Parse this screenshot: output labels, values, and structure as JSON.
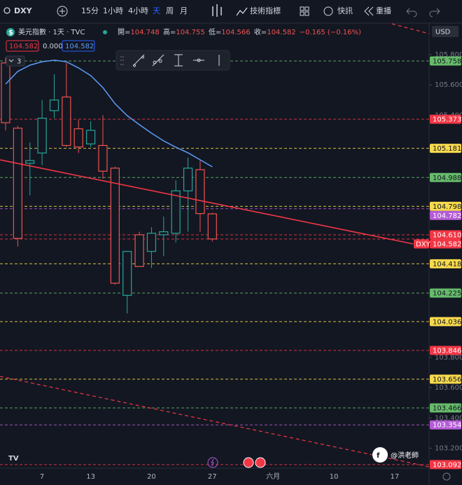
{
  "toolbar": {
    "symbol": "DXY",
    "intervals": [
      "15分",
      "1小時",
      "4小時",
      "天",
      "周",
      "月"
    ],
    "indicators": "技術指標",
    "alerts": "快訊",
    "replay": "重播"
  },
  "legend": {
    "title": "美元指數 · 1天 · TVC",
    "ohlc_labels": [
      "開=",
      "高=",
      "低=",
      "收="
    ],
    "change": "−0.165 (−0.16%)",
    "price_boxes": [
      "104.582",
      "0.000",
      "104.582"
    ],
    "collapse": "3"
  },
  "currency": "USD",
  "watermark": "@洪老師",
  "chart_data": {
    "type": "candlestick",
    "symbol_tag": "DXY",
    "categories": [
      null,
      null,
      null,
      "7",
      null,
      null,
      null,
      "13",
      null,
      null,
      null,
      null,
      "20",
      null,
      null,
      null,
      null,
      "27",
      null,
      null,
      null,
      null,
      "六月",
      null,
      null,
      null,
      null,
      "10",
      null,
      null,
      null,
      null,
      "17"
    ],
    "open": [
      105.745,
      105.314,
      105.082,
      105.15,
      105.43,
      105.52,
      105.31,
      105.21,
      105.2,
      105.05,
      104.21,
      104.61,
      104.5,
      104.61,
      104.62,
      104.9,
      105.04,
      104.748,
      null,
      null,
      null,
      null,
      null,
      null,
      null,
      null,
      null,
      null,
      null,
      null,
      null,
      null,
      null
    ],
    "high": [
      105.78,
      105.33,
      105.22,
      105.5,
      105.67,
      105.745,
      105.37,
      105.36,
      105.4,
      105.06,
      104.5,
      104.63,
      104.66,
      104.73,
      104.97,
      105.12,
      105.1,
      104.755,
      null,
      null,
      null,
      null,
      null,
      null,
      null,
      null,
      null,
      null,
      null,
      null,
      null,
      null,
      null
    ],
    "low": [
      105.3,
      104.532,
      104.87,
      105.07,
      105.38,
      105.19,
      105.15,
      105.19,
      104.98,
      104.28,
      104.09,
      104.4,
      104.39,
      104.47,
      104.56,
      104.63,
      104.63,
      104.566,
      null,
      null,
      null,
      null,
      null,
      null,
      null,
      null,
      null,
      null,
      null,
      null,
      null,
      null,
      null
    ],
    "close": [
      105.35,
      104.586,
      105.1,
      105.38,
      105.5,
      105.2,
      105.19,
      105.3,
      105.03,
      104.29,
      104.5,
      104.4,
      104.62,
      104.63,
      104.9,
      105.05,
      104.75,
      104.582,
      null,
      null,
      null,
      null,
      null,
      null,
      null,
      null,
      null,
      null,
      null,
      null,
      null,
      null,
      null
    ],
    "ma_values": [
      105.605,
      105.689,
      105.73,
      105.753,
      105.763,
      105.753,
      105.712,
      105.661,
      105.582,
      105.476,
      105.397,
      105.337,
      105.281,
      105.23,
      105.188,
      105.151,
      105.105,
      105.059,
      null,
      null,
      null,
      null,
      null,
      null,
      null,
      null,
      null,
      null,
      null,
      null,
      null,
      null,
      null
    ],
    "ma_color": "#5b9cf6",
    "up_color": "#26a69a",
    "down_color": "#ef5350",
    "ylim": [
      103.068,
      106.008
    ],
    "yticks": [
      {
        "value": 105.8,
        "label": "105.800"
      },
      {
        "value": 105.6,
        "label": "105.600"
      },
      {
        "value": 105.4,
        "label": "105.400"
      },
      {
        "value": 103.8,
        "label": "103.800"
      },
      {
        "value": 103.6,
        "label": "103.600"
      },
      {
        "value": 103.4,
        "label": "103.400"
      },
      {
        "value": 103.2,
        "label": "103.200"
      }
    ],
    "levels": [
      {
        "value": 105.758,
        "label": "105.758",
        "color": "#66bb6a"
      },
      {
        "value": 105.373,
        "label": "105.373",
        "color": "#f23645"
      },
      {
        "value": 105.181,
        "label": "105.181",
        "color": "#f7d94c"
      },
      {
        "value": 104.988,
        "label": "104.988",
        "color": "#66bb6a"
      },
      {
        "value": 104.798,
        "label": "104.798",
        "color": "#f7d94c"
      },
      {
        "value": 104.782,
        "label": "104.782",
        "color": "#b45cd6"
      },
      {
        "value": 104.61,
        "label": "104.610",
        "color": "#f23645"
      },
      {
        "value": 104.582,
        "label": "104.582",
        "color": "#f23645"
      },
      {
        "value": 104.418,
        "label": "104.418",
        "color": "#f7d94c"
      },
      {
        "value": 104.225,
        "label": "104.225",
        "color": "#66bb6a"
      },
      {
        "value": 104.036,
        "label": "104.036",
        "color": "#f7d94c"
      },
      {
        "value": 103.846,
        "label": "103.846",
        "color": "#f23645"
      },
      {
        "value": 103.656,
        "label": "103.656",
        "color": "#f7d94c"
      },
      {
        "value": 103.466,
        "label": "103.466",
        "color": "#66bb6a"
      },
      {
        "value": 103.354,
        "label": "103.354",
        "color": "#b45cd6"
      },
      {
        "value": 103.092,
        "label": "103.092",
        "color": "#f23645"
      }
    ]
  }
}
